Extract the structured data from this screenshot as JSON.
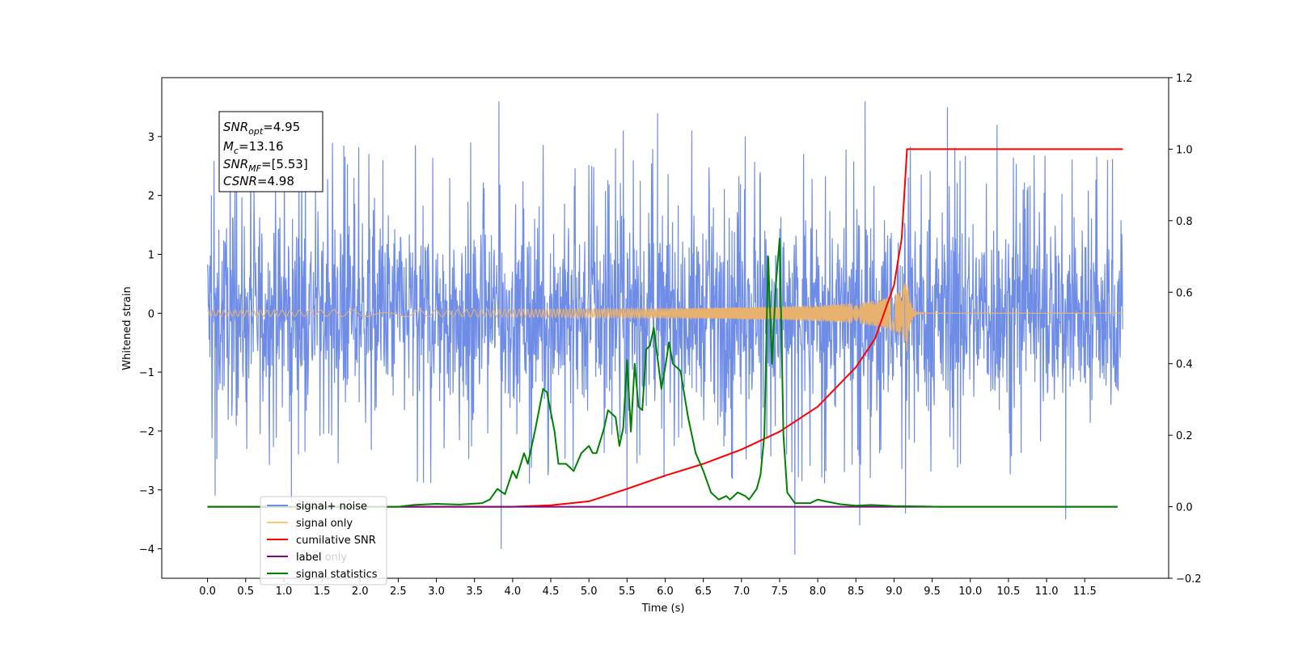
{
  "chart_data": {
    "type": "line",
    "xlabel": "Time (s)",
    "ylabel": "Whitened strain",
    "xlim": [
      -0.6,
      12.6
    ],
    "ylim": [
      -4.5,
      4.0
    ],
    "y2lim": [
      -0.2,
      1.2
    ],
    "x_ticks": [
      0.0,
      0.5,
      1.0,
      1.5,
      2.0,
      2.5,
      3.0,
      3.5,
      4.0,
      4.5,
      5.0,
      5.5,
      6.0,
      6.5,
      7.0,
      7.5,
      8.0,
      8.5,
      9.0,
      9.5,
      10.0,
      10.5,
      11.0,
      11.5
    ],
    "x_tick_labels": [
      "0.0",
      "0.5",
      "1.0",
      "1.5",
      "2.0",
      "2.5",
      "3.0",
      "3.5",
      "4.0",
      "4.5",
      "5.0",
      "5.5",
      "6.0",
      "6.5",
      "7.0",
      "7.5",
      "8.0",
      "8.5",
      "9.0",
      "9.5",
      "10.0",
      "10.5",
      "11.0",
      "11.5"
    ],
    "y_ticks": [
      -4,
      -3,
      -2,
      -1,
      0,
      1,
      2,
      3
    ],
    "y_tick_labels": [
      "−4",
      "−3",
      "−2",
      "−1",
      "0",
      "1",
      "2",
      "3"
    ],
    "y2_ticks": [
      -0.2,
      0.0,
      0.2,
      0.4,
      0.6,
      0.8,
      1.0,
      1.2
    ],
    "y2_tick_labels": [
      "−0.2",
      "0.0",
      "0.2",
      "0.4",
      "0.6",
      "0.8",
      "1.0",
      "1.2"
    ],
    "annotation": [
      {
        "main": "SNR",
        "sub": "opt",
        "rest": "=4.95"
      },
      {
        "main": "M",
        "sub": "c",
        "rest": "=13.16"
      },
      {
        "main": "SNR",
        "sub": "MF",
        "rest": "=[5.53]"
      },
      {
        "main": "CSNR",
        "sub": "",
        "rest": "=4.98"
      }
    ],
    "legend_position": "lower-left",
    "series": [
      {
        "name": "signal+ noise",
        "color": "#6f8de6",
        "axis": "left",
        "kind": "noise",
        "x_range": [
          0.0,
          12.0
        ],
        "typical_range": [
          -1.5,
          1.5
        ],
        "spikes": [
          [
            0.05,
            2.0
          ],
          [
            0.1,
            -3.1
          ],
          [
            1.1,
            -3.2
          ],
          [
            2.3,
            2.6
          ],
          [
            3.45,
            2.9
          ],
          [
            3.82,
            3.6
          ],
          [
            3.85,
            -4.0
          ],
          [
            5.45,
            3.1
          ],
          [
            5.5,
            -3.3
          ],
          [
            5.9,
            3.4
          ],
          [
            6.35,
            3.1
          ],
          [
            7.05,
            3.0
          ],
          [
            7.7,
            -4.1
          ],
          [
            8.55,
            -3.6
          ],
          [
            8.62,
            3.6
          ],
          [
            9.15,
            -3.4
          ],
          [
            9.7,
            3.5
          ],
          [
            10.35,
            3.2
          ],
          [
            11.25,
            -3.5
          ],
          [
            11.8,
            2.6
          ]
        ]
      },
      {
        "name": "signal only",
        "color": "#e8b26e",
        "axis": "left",
        "kind": "chirp",
        "merger_time": 9.17,
        "peak_amplitude": 0.65
      },
      {
        "name": "cumilative SNR",
        "color": "#ff0000",
        "axis": "right",
        "x": [
          0.0,
          1.0,
          2.0,
          3.0,
          3.5,
          4.0,
          4.5,
          5.0,
          5.5,
          6.0,
          6.5,
          7.0,
          7.5,
          8.0,
          8.5,
          8.75,
          9.0,
          9.1,
          9.17,
          9.2,
          12.0
        ],
        "y": [
          0.0,
          0.0,
          0.0,
          0.0,
          0.0,
          0.0,
          0.004,
          0.015,
          0.05,
          0.087,
          0.12,
          0.16,
          0.21,
          0.28,
          0.39,
          0.47,
          0.62,
          0.75,
          1.0,
          1.0,
          1.0
        ]
      },
      {
        "name": "label",
        "color": "#7b0a7b",
        "axis": "right",
        "x": [
          0.0,
          11.93
        ],
        "y": [
          0.0,
          0.0
        ]
      },
      {
        "name": "signal statistics",
        "color": "#008000",
        "axis": "right",
        "x": [
          0.0,
          0.5,
          1.0,
          1.5,
          2.0,
          2.5,
          2.7,
          3.0,
          3.3,
          3.6,
          3.7,
          3.8,
          3.9,
          4.0,
          4.05,
          4.15,
          4.2,
          4.3,
          4.4,
          4.45,
          4.55,
          4.6,
          4.7,
          4.8,
          4.9,
          5.0,
          5.05,
          5.1,
          5.2,
          5.25,
          5.35,
          5.4,
          5.45,
          5.5,
          5.55,
          5.6,
          5.65,
          5.7,
          5.75,
          5.8,
          5.85,
          5.95,
          6.0,
          6.05,
          6.1,
          6.2,
          6.3,
          6.4,
          6.5,
          6.6,
          6.7,
          6.8,
          6.85,
          6.95,
          7.05,
          7.1,
          7.2,
          7.25,
          7.3,
          7.35,
          7.4,
          7.45,
          7.5,
          7.55,
          7.6,
          7.7,
          7.8,
          7.9,
          8.0,
          8.1,
          8.3,
          8.5,
          8.7,
          9.0,
          9.3,
          9.6,
          10.0,
          10.5,
          11.0,
          11.93
        ],
        "y": [
          0.0,
          0.0,
          0.0,
          0.0,
          0.0,
          0.0,
          0.005,
          0.008,
          0.006,
          0.01,
          0.02,
          0.05,
          0.035,
          0.1,
          0.08,
          0.15,
          0.12,
          0.22,
          0.33,
          0.32,
          0.21,
          0.12,
          0.12,
          0.1,
          0.15,
          0.17,
          0.15,
          0.15,
          0.22,
          0.27,
          0.25,
          0.17,
          0.22,
          0.41,
          0.21,
          0.4,
          0.28,
          0.27,
          0.44,
          0.45,
          0.5,
          0.33,
          0.39,
          0.46,
          0.4,
          0.38,
          0.25,
          0.15,
          0.1,
          0.04,
          0.02,
          0.03,
          0.02,
          0.04,
          0.03,
          0.02,
          0.05,
          0.09,
          0.2,
          0.7,
          0.4,
          0.62,
          0.75,
          0.2,
          0.04,
          0.01,
          0.01,
          0.01,
          0.02,
          0.015,
          0.007,
          0.003,
          0.005,
          0.002,
          0.001,
          0.0,
          0.0,
          0.0,
          0.0,
          0.0
        ]
      }
    ]
  },
  "legend": {
    "entries": [
      {
        "label": "signal+ noise",
        "color": "#6f8de6"
      },
      {
        "label": "signal only",
        "color": "#ffc870"
      },
      {
        "label": "cumilative SNR",
        "color": "#ff0000"
      },
      {
        "label": "label",
        "color": "#7b0a7b"
      },
      {
        "label": "signal statistics",
        "color": "#008000"
      }
    ],
    "hidden_text": "label only"
  }
}
